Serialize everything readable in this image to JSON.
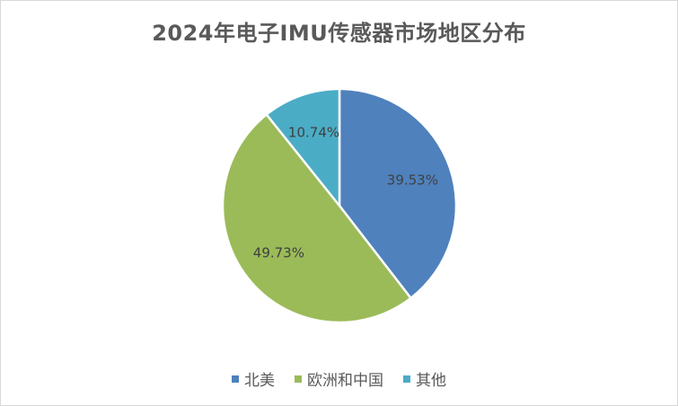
{
  "chart_data": {
    "type": "pie",
    "title": "2024年电子IMU传感器市场地区分布",
    "legend_position": "bottom",
    "slices": [
      {
        "label": "北美",
        "value": 39.53,
        "display": "39.53%",
        "color": "#4f81bd"
      },
      {
        "label": "欧洲和中国",
        "value": 49.73,
        "display": "49.73%",
        "color": "#9bbb59"
      },
      {
        "label": "其他",
        "value": 10.74,
        "display": "10.74%",
        "color": "#4bacc6"
      }
    ]
  }
}
